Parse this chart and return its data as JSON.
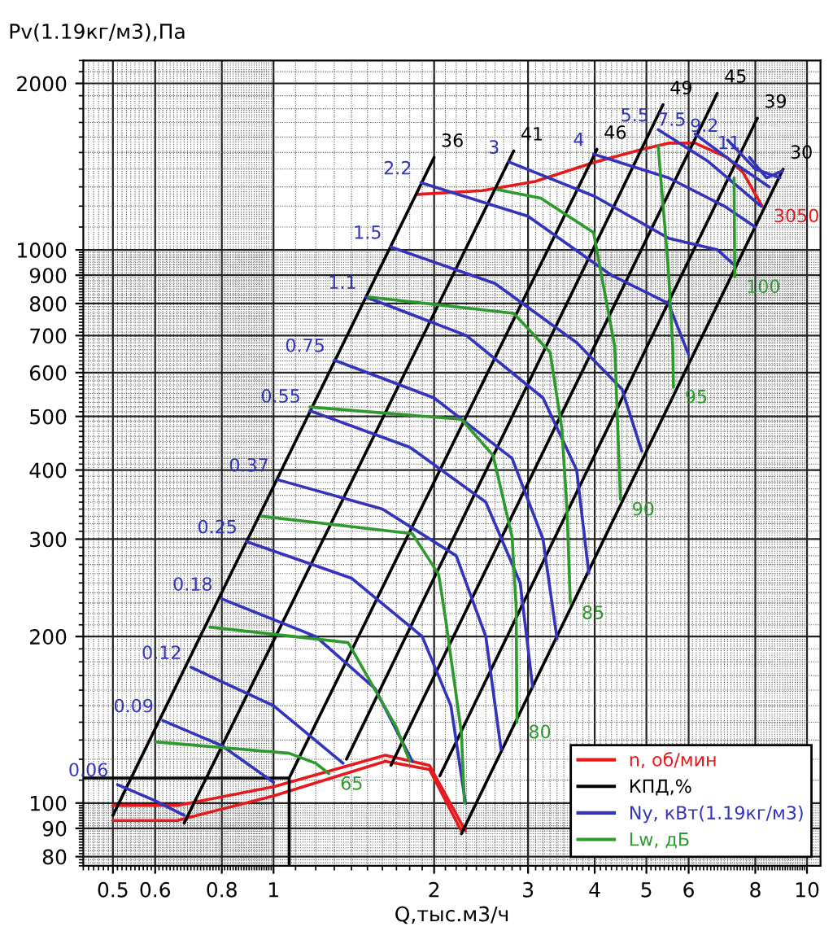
{
  "chart_data": {
    "type": "line",
    "xlabel": "Q,тыс.м3/ч",
    "ylabel": "Pv(1.19кг/м3),Па",
    "log": "xy",
    "grid": true,
    "legend": "bottom right",
    "marker": "none",
    "line_style": "solid",
    "xlim": [
      0.44,
      10.6
    ],
    "ylim": [
      77,
      2200
    ],
    "xticks": [
      0.5,
      0.6,
      0.8,
      1,
      2,
      3,
      4,
      5,
      6,
      8,
      10
    ],
    "yticks": [
      80,
      90,
      100,
      200,
      300,
      400,
      500,
      600,
      700,
      800,
      900,
      1000,
      2000
    ],
    "series": [
      {
        "name": "n, об/мин",
        "color": "#e8191c",
        "x": [
          1.86,
          2.46,
          3.09,
          3.99,
          4.91,
          5.52,
          6.17,
          7.08,
          7.59,
          8.24
        ],
        "values": [
          1260,
          1280,
          1330,
          1440,
          1520,
          1560,
          1560,
          1470,
          1380,
          1200
        ]
      },
      {
        "color": "#e8191c",
        "x": [
          0.5,
          0.66,
          1.0,
          1.62,
          1.96,
          2.25
        ],
        "values": [
          93,
          93,
          103,
          119,
          115,
          89
        ]
      },
      {
        "color": "#e8191c",
        "x": [
          0.5,
          0.66,
          1.0,
          1.62,
          1.96,
          2.29
        ],
        "values": [
          99,
          99,
          107,
          122,
          117,
          89
        ]
      },
      {
        "name": "КПД,%",
        "color": "#000000",
        "x": [
          0.5,
          2.0
        ],
        "values": [
          95,
          1470
        ]
      },
      {
        "color": "#000000",
        "x": [
          0.68,
          2.82
        ],
        "values": [
          92,
          1510
        ]
      },
      {
        "color": "#000000",
        "x": [
          1.07,
          4.04
        ],
        "values": [
          111,
          1520
        ]
      },
      {
        "color": "#000000",
        "x": [
          1.37,
          5.37
        ],
        "values": [
          120,
          1830
        ]
      },
      {
        "color": "#000000",
        "x": [
          1.66,
          6.79
        ],
        "values": [
          117,
          1920
        ]
      },
      {
        "color": "#000000",
        "x": [
          2.05,
          8.07
        ],
        "values": [
          112,
          1730
        ]
      },
      {
        "color": "#000000",
        "x": [
          2.25,
          9.02
        ],
        "values": [
          88,
          1400
        ]
      },
      {
        "color": "#000000",
        "x": [
          0.44,
          1.07,
          1.07
        ],
        "values": [
          111,
          111,
          77
        ]
      },
      {
        "name": "Ny, кВт(1.19кг/м3)",
        "color": "#3333bb",
        "x": [
          0.51,
          0.6,
          0.68
        ],
        "values": [
          108,
          101,
          95
        ]
      },
      {
        "color": "#3333bb",
        "x": [
          0.62,
          0.8,
          1.0
        ],
        "values": [
          141,
          127,
          109
        ]
      },
      {
        "color": "#3333bb",
        "x": [
          0.7,
          1.0,
          1.35
        ],
        "values": [
          176,
          150,
          118
        ]
      },
      {
        "color": "#3333bb",
        "x": [
          0.8,
          1.2,
          1.55,
          1.82
        ],
        "values": [
          234,
          200,
          161,
          119
        ]
      },
      {
        "color": "#3333bb",
        "x": [
          0.89,
          1.4,
          1.9,
          2.15,
          2.29
        ],
        "values": [
          297,
          255,
          200,
          150,
          100
        ]
      },
      {
        "color": "#3333bb",
        "x": [
          1.02,
          1.6,
          2.2,
          2.5,
          2.67
        ],
        "values": [
          384,
          340,
          280,
          200,
          125
        ]
      },
      {
        "color": "#3333bb",
        "x": [
          1.17,
          1.8,
          2.5,
          2.9,
          3.06
        ],
        "values": [
          512,
          440,
          350,
          250,
          162
        ]
      },
      {
        "color": "#3333bb",
        "x": [
          1.3,
          2.0,
          2.8,
          3.2,
          3.4
        ],
        "values": [
          632,
          540,
          420,
          300,
          198
        ]
      },
      {
        "color": "#3333bb",
        "x": [
          1.49,
          2.3,
          3.2,
          3.7,
          3.9
        ],
        "values": [
          822,
          700,
          540,
          400,
          260
        ]
      },
      {
        "color": "#3333bb",
        "x": [
          1.66,
          2.6,
          3.7,
          4.5,
          4.9
        ],
        "values": [
          1012,
          870,
          680,
          560,
          433
        ]
      },
      {
        "color": "#3333bb",
        "x": [
          1.89,
          3.0,
          4.3,
          5.5,
          6.0
        ],
        "values": [
          1323,
          1150,
          900,
          800,
          646
        ]
      },
      {
        "color": "#3333bb",
        "x": [
          2.76,
          4.0,
          5.5,
          6.8,
          7.3
        ],
        "values": [
          1443,
          1250,
          1050,
          1000,
          940
        ]
      },
      {
        "color": "#3333bb",
        "x": [
          3.98,
          5.5,
          7.0,
          8.0
        ],
        "values": [
          1490,
          1350,
          1200,
          1100
        ]
      },
      {
        "color": "#3333bb",
        "x": [
          5.26,
          6.5,
          8.2
        ],
        "values": [
          1650,
          1450,
          1200
        ]
      },
      {
        "color": "#3333bb",
        "x": [
          6.17,
          7.2,
          8.5
        ],
        "values": [
          1620,
          1450,
          1300
        ]
      },
      {
        "color": "#3333bb",
        "x": [
          7.1,
          8.0,
          8.9
        ],
        "values": [
          1580,
          1400,
          1350
        ]
      },
      {
        "color": "#3333bb",
        "x": [
          7.8,
          8.4,
          9.0
        ],
        "values": [
          1470,
          1350,
          1390
        ]
      },
      {
        "name": "Lw, дБ",
        "color": "#2e9a2e",
        "x": [
          0.6,
          1.07,
          1.2,
          1.27
        ],
        "values": [
          129,
          123,
          118,
          113
        ]
      },
      {
        "color": "#2e9a2e",
        "x": [
          0.76,
          1.38,
          1.7,
          1.8
        ],
        "values": [
          208,
          195,
          137,
          119
        ]
      },
      {
        "color": "#2e9a2e",
        "x": [
          0.95,
          1.82,
          2.04,
          2.1,
          2.25,
          2.28
        ],
        "values": [
          330,
          307,
          259,
          216,
          134,
          100
        ]
      },
      {
        "color": "#2e9a2e",
        "x": [
          1.17,
          2.25,
          2.58,
          2.8,
          2.85,
          2.86
        ],
        "values": [
          520,
          494,
          425,
          303,
          226,
          140
        ]
      },
      {
        "color": "#2e9a2e",
        "x": [
          1.51,
          2.82,
          3.3,
          3.47,
          3.55,
          3.6
        ],
        "values": [
          822,
          768,
          653,
          476,
          339,
          230
        ]
      },
      {
        "color": "#2e9a2e",
        "x": [
          2.63,
          3.17,
          3.98,
          4.36,
          4.47
        ],
        "values": [
          1285,
          1240,
          1075,
          670,
          354
        ]
      },
      {
        "color": "#2e9a2e",
        "x": [
          5.26,
          5.5,
          5.6,
          5.62
        ],
        "values": [
          1540,
          915,
          670,
          565
        ]
      },
      {
        "color": "#2e9a2e",
        "x": [
          7.3,
          7.32
        ],
        "values": [
          1350,
          894
        ]
      }
    ],
    "annotations": [
      {
        "text": "3050",
        "x": 8.24,
        "y": 1200
      },
      {
        "text": "36",
        "x": 2.0,
        "y": 1470
      },
      {
        "text": "41",
        "x": 2.82,
        "y": 1510
      },
      {
        "text": "46",
        "x": 4.04,
        "y": 1520
      },
      {
        "text": "49",
        "x": 5.37,
        "y": 1830
      },
      {
        "text": "45",
        "x": 6.79,
        "y": 1920
      },
      {
        "text": "39",
        "x": 8.07,
        "y": 1730
      },
      {
        "text": "30",
        "x": 9.02,
        "y": 1400
      },
      {
        "text": "0.06",
        "x": 0.51,
        "y": 108
      },
      {
        "text": "0.09",
        "x": 0.62,
        "y": 141
      },
      {
        "text": "0.12",
        "x": 0.7,
        "y": 176
      },
      {
        "text": "0.18",
        "x": 0.8,
        "y": 234
      },
      {
        "text": "0.25",
        "x": 0.89,
        "y": 297
      },
      {
        "text": "0.37",
        "x": 1.02,
        "y": 384
      },
      {
        "text": "0.55",
        "x": 1.17,
        "y": 512
      },
      {
        "text": "0.75",
        "x": 1.3,
        "y": 632
      },
      {
        "text": "1.1",
        "x": 1.49,
        "y": 822
      },
      {
        "text": "1.5",
        "x": 1.66,
        "y": 1012
      },
      {
        "text": "2.2",
        "x": 1.89,
        "y": 1323
      },
      {
        "text": "3",
        "x": 2.76,
        "y": 1443
      },
      {
        "text": "4",
        "x": 3.98,
        "y": 1490
      },
      {
        "text": "5.5",
        "x": 5.26,
        "y": 1650
      },
      {
        "text": "7.5",
        "x": 6.17,
        "y": 1620
      },
      {
        "text": "9.2",
        "x": 7.1,
        "y": 1580
      },
      {
        "text": "11",
        "x": 7.8,
        "y": 1470
      },
      {
        "text": "65",
        "x": 1.27,
        "y": 113
      },
      {
        "text": "80",
        "x": 2.86,
        "y": 140
      },
      {
        "text": "85",
        "x": 3.6,
        "y": 230
      },
      {
        "text": "90",
        "x": 4.47,
        "y": 354
      },
      {
        "text": "95",
        "x": 5.62,
        "y": 565
      },
      {
        "text": "100",
        "x": 7.32,
        "y": 894
      }
    ]
  }
}
